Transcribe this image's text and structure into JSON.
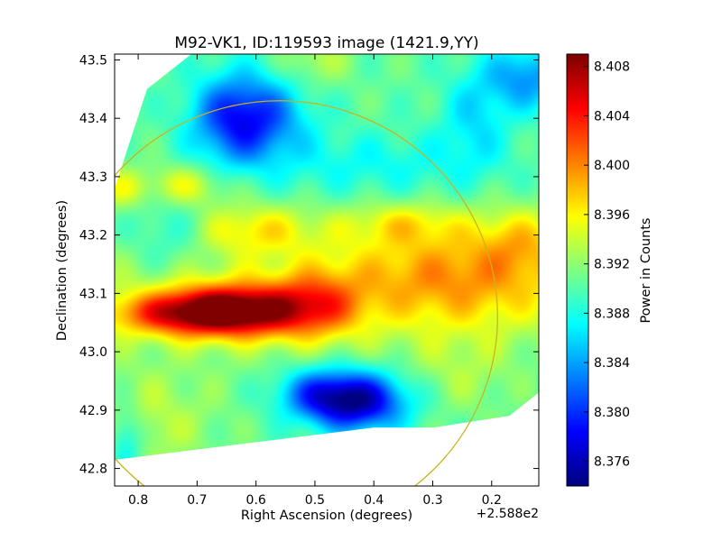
{
  "chart_data": {
    "type": "heatmap",
    "title": "M92-VK1, ID:119593 image (1421.9,YY)",
    "xlabel": "Right Ascension (degrees)",
    "ylabel": "Declination (degrees)",
    "x_offset_label": "+2.588e2",
    "xlim": [
      259.64,
      258.92
    ],
    "ylim": [
      42.77,
      43.51
    ],
    "x_ticks": [
      {
        "value": 259.6,
        "label": "0.8"
      },
      {
        "value": 259.5,
        "label": "0.7"
      },
      {
        "value": 259.4,
        "label": "0.6"
      },
      {
        "value": 259.3,
        "label": "0.5"
      },
      {
        "value": 259.2,
        "label": "0.4"
      },
      {
        "value": 259.1,
        "label": "0.3"
      },
      {
        "value": 259.0,
        "label": "0.2"
      }
    ],
    "y_ticks": [
      {
        "value": 42.8,
        "label": "42.8"
      },
      {
        "value": 42.9,
        "label": "42.9"
      },
      {
        "value": 43.0,
        "label": "43.0"
      },
      {
        "value": 43.1,
        "label": "43.1"
      },
      {
        "value": 43.2,
        "label": "43.2"
      },
      {
        "value": 43.3,
        "label": "43.3"
      },
      {
        "value": 43.4,
        "label": "43.4"
      },
      {
        "value": 43.5,
        "label": "43.5"
      }
    ],
    "colorbar": {
      "label": "Power in Counts",
      "range": [
        8.374,
        8.409
      ],
      "colormap": "jet",
      "ticks": [
        {
          "value": 8.376,
          "label": "8.376"
        },
        {
          "value": 8.38,
          "label": "8.380"
        },
        {
          "value": 8.384,
          "label": "8.384"
        },
        {
          "value": 8.388,
          "label": "8.388"
        },
        {
          "value": 8.392,
          "label": "8.392"
        },
        {
          "value": 8.396,
          "label": "8.396"
        },
        {
          "value": 8.4,
          "label": "8.400"
        },
        {
          "value": 8.404,
          "label": "8.404"
        },
        {
          "value": 8.408,
          "label": "8.408"
        }
      ]
    },
    "background_level": 8.3905,
    "features": [
      {
        "name": "blob",
        "ra": 259.44,
        "dec": 43.07,
        "sra": 0.08,
        "sdec": 0.03,
        "amp": 0.018
      },
      {
        "name": "blob",
        "ra": 259.55,
        "dec": 43.065,
        "sra": 0.08,
        "sdec": 0.025,
        "amp": 0.008
      },
      {
        "name": "blob",
        "ra": 259.3,
        "dec": 43.08,
        "sra": 0.055,
        "sdec": 0.04,
        "amp": 0.008
      },
      {
        "name": "blob",
        "ra": 259.06,
        "dec": 43.13,
        "sra": 0.14,
        "sdec": 0.06,
        "amp": 0.007
      },
      {
        "name": "blob",
        "ra": 258.95,
        "dec": 43.19,
        "sra": 0.05,
        "sdec": 0.04,
        "amp": 0.004
      },
      {
        "name": "blob",
        "ra": 259.4,
        "dec": 43.21,
        "sra": 0.07,
        "sdec": 0.03,
        "amp": 0.005
      },
      {
        "name": "blob",
        "ra": 259.15,
        "dec": 43.22,
        "sra": 0.07,
        "sdec": 0.025,
        "amp": 0.004
      },
      {
        "name": "blob",
        "ra": 259.52,
        "dec": 43.285,
        "sra": 0.05,
        "sdec": 0.025,
        "amp": 0.005
      },
      {
        "name": "blob",
        "ra": 259.63,
        "dec": 43.28,
        "sra": 0.03,
        "sdec": 0.025,
        "amp": 0.004
      },
      {
        "name": "blob",
        "ra": 259.33,
        "dec": 43.1,
        "sra": 0.4,
        "sdec": 0.08,
        "amp": 0.003
      },
      {
        "name": "blob",
        "ra": 259.55,
        "dec": 43.2,
        "sra": 0.05,
        "sdec": 0.05,
        "amp": -0.003
      },
      {
        "name": "blob",
        "ra": 259.23,
        "dec": 42.915,
        "sra": 0.06,
        "sdec": 0.035,
        "amp": -0.015
      },
      {
        "name": "blob",
        "ra": 259.3,
        "dec": 42.93,
        "sra": 0.05,
        "sdec": 0.03,
        "amp": -0.006
      },
      {
        "name": "blob",
        "ra": 259.4,
        "dec": 43.4,
        "sra": 0.06,
        "sdec": 0.05,
        "amp": -0.009
      },
      {
        "name": "blob",
        "ra": 259.45,
        "dec": 43.4,
        "sra": 0.05,
        "sdec": 0.06,
        "amp": -0.005
      },
      {
        "name": "blob",
        "ra": 258.94,
        "dec": 43.47,
        "sra": 0.05,
        "sdec": 0.04,
        "amp": -0.007
      },
      {
        "name": "blob",
        "ra": 259.03,
        "dec": 43.4,
        "sra": 0.04,
        "sdec": 0.06,
        "amp": -0.004
      },
      {
        "name": "blob",
        "ra": 259.62,
        "dec": 42.85,
        "sra": 0.02,
        "sdec": 0.04,
        "amp": -0.005
      },
      {
        "name": "blob",
        "ra": 259.2,
        "dec": 43.32,
        "sra": 0.15,
        "sdec": 0.04,
        "amp": -0.003
      },
      {
        "name": "blob",
        "ra": 259.3,
        "dec": 43.5,
        "sra": 0.04,
        "sdec": 0.03,
        "amp": 0.003
      },
      {
        "name": "blob",
        "ra": 259.58,
        "dec": 42.88,
        "sra": 0.08,
        "sdec": 0.06,
        "amp": 0.003
      },
      {
        "name": "blob",
        "ra": 259.05,
        "dec": 42.96,
        "sra": 0.06,
        "sdec": 0.05,
        "amp": 0.002
      }
    ],
    "data_boundary": [
      [
        259.64,
        42.815
      ],
      [
        259.2,
        42.87
      ],
      [
        259.1,
        42.87
      ],
      [
        258.97,
        42.89
      ],
      [
        258.92,
        42.93
      ],
      [
        258.92,
        43.51
      ],
      [
        259.51,
        43.51
      ],
      [
        259.585,
        43.45
      ],
      [
        259.64,
        43.28
      ]
    ],
    "circle": {
      "center_ra": 259.36,
      "center_dec": 43.06,
      "radius_deg": 0.37,
      "color": "#c8b41e"
    },
    "grid": false,
    "legend": "none"
  }
}
